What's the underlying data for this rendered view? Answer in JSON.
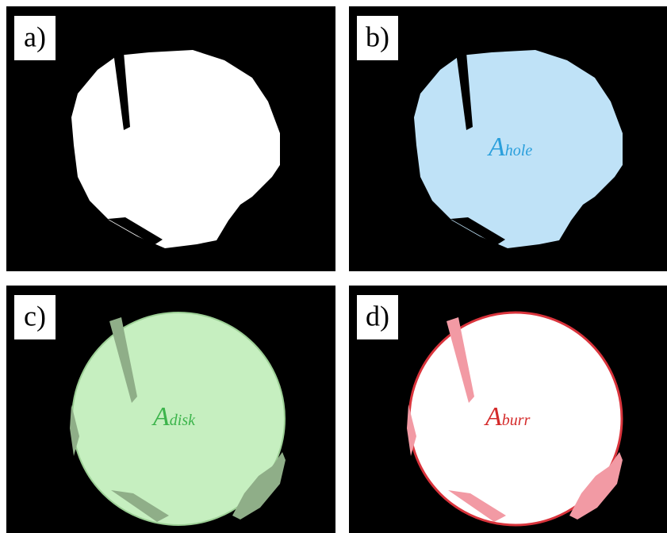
{
  "panels": [
    {
      "label": "a)"
    },
    {
      "label": "b)",
      "symbol": "A",
      "subscript": "hole"
    },
    {
      "label": "c)",
      "symbol": "A",
      "subscript": "disk"
    },
    {
      "label": "d)",
      "symbol": "A",
      "subscript": "burr"
    }
  ]
}
